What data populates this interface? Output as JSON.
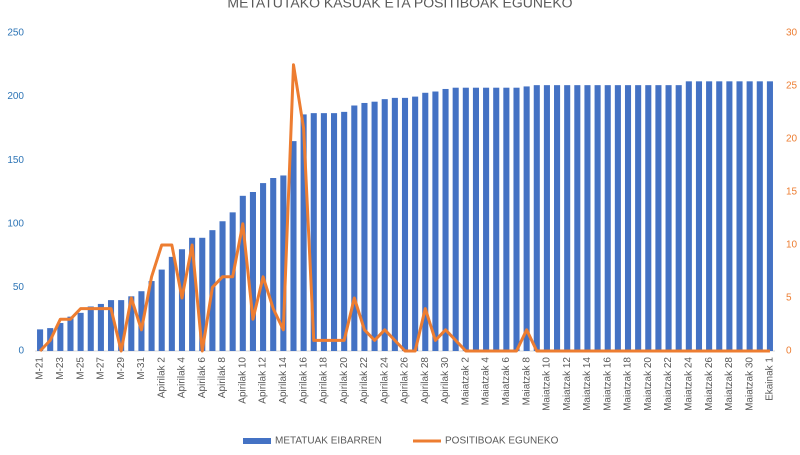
{
  "chart_data": {
    "type": "bar-line",
    "title": "METATUTAKO KASUAK ETA POSITIBOAK EGUNEKO",
    "categories": [
      "M-21",
      null,
      "M-23",
      null,
      "M-25",
      null,
      "M-27",
      null,
      "M-29",
      null,
      "M-31",
      null,
      "Apirilak 2",
      null,
      "Apirilak 4",
      null,
      "Apirilak 6",
      null,
      "Apirilak 8",
      null,
      "Apirilak 10",
      null,
      "Apirilak 12",
      null,
      "Apirilak 14",
      null,
      "Apirilak 16",
      null,
      "Apirilak 18",
      null,
      "Apirilak 20",
      null,
      "Apirilak 22",
      null,
      "Apirilak 24",
      null,
      "Apirilak 26",
      null,
      "Apirilak 28",
      null,
      "Apirilak 30",
      null,
      "Maiatzak 2",
      null,
      "Maiatzak 4",
      null,
      "Maiatzak 6",
      null,
      "Maiatzak 8",
      null,
      "Maiatzak 10",
      null,
      "Maiatzak 12",
      null,
      "Maiatzak 14",
      null,
      "Maiatzak 16",
      null,
      "Maiatzak 18",
      null,
      "Maiatzak 20",
      null,
      "Maiatzak 22",
      null,
      "Maiatzak 24",
      null,
      "Maiatzak 26",
      null,
      "Maiatzak 28",
      null,
      "Maiatzak 30",
      null,
      "Ekainak 1"
    ],
    "series": [
      {
        "name": "METATUAK EIBARREN",
        "type": "bar",
        "color": "#4472c4",
        "values": [
          17,
          18,
          22,
          27,
          30,
          35,
          37,
          40,
          40,
          43,
          47,
          55,
          64,
          74,
          80,
          89,
          89,
          95,
          102,
          109,
          122,
          125,
          132,
          136,
          138,
          165,
          186,
          187,
          187,
          187,
          188,
          193,
          195,
          196,
          198,
          199,
          199,
          200,
          203,
          204,
          206,
          207,
          207,
          207,
          207,
          207,
          207,
          207,
          208,
          209,
          209,
          209,
          209,
          209,
          209,
          209,
          209,
          209,
          209,
          209,
          209,
          209,
          209,
          209,
          212,
          212,
          212,
          212,
          212,
          212,
          212,
          212,
          212
        ]
      },
      {
        "name": "POSITIBOAK EGUNEKO",
        "type": "line",
        "axis": "y2",
        "color": "#ed7d31",
        "values": [
          0,
          1,
          3,
          3,
          4,
          4,
          4,
          4,
          0,
          5,
          2,
          7,
          10,
          10,
          5,
          10,
          0,
          6,
          7,
          7,
          12,
          3,
          7,
          4,
          2,
          27,
          21,
          1,
          1,
          1,
          1,
          5,
          2,
          1,
          2,
          1,
          0,
          0,
          4,
          1,
          2,
          1,
          0,
          0,
          0,
          0,
          0,
          0,
          2,
          0,
          0,
          0,
          0,
          0,
          0,
          0,
          0,
          0,
          0,
          0,
          0,
          0,
          0,
          0,
          0,
          0,
          0,
          0,
          0,
          0,
          0,
          0,
          0
        ]
      }
    ],
    "ylim": [
      0,
      250
    ],
    "yticks": [
      0,
      50,
      100,
      150,
      200,
      250
    ],
    "y2lim": [
      0,
      30
    ],
    "y2ticks": [
      0,
      5,
      10,
      15,
      20,
      25,
      30
    ],
    "legend": "bottom"
  }
}
